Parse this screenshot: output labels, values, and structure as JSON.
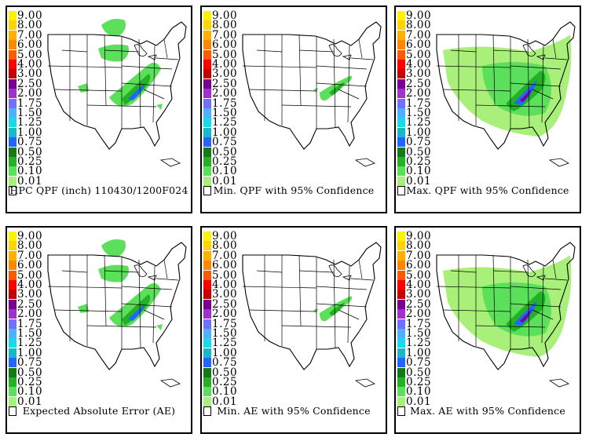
{
  "legend": {
    "labels": [
      "9.00",
      "8.00",
      "7.00",
      "6.00",
      "5.00",
      "4.00",
      "3.00",
      "2.50",
      "2.00",
      "1.75",
      "1.50",
      "1.25",
      "1.00",
      "0.75",
      "0.50",
      "0.25",
      "0.10",
      "0.01"
    ],
    "colors": [
      "#fff200",
      "#ffd400",
      "#ffb000",
      "#ff8800",
      "#ff5a00",
      "#ff0000",
      "#c80000",
      "#7a0090",
      "#a030d0",
      "#7070ff",
      "#4fb0ff",
      "#19d8e8",
      "#17b8c8",
      "#2266ff",
      "#157a15",
      "#23b223",
      "#5ce05c",
      "#a8f07a"
    ]
  },
  "panels": [
    {
      "caption": "HPC QPF (inch) 110430/1200F024",
      "intensity": "medium"
    },
    {
      "caption": "Min. QPF with 95% Confidence",
      "intensity": "low"
    },
    {
      "caption": "Max. QPF with 95% Confidence",
      "intensity": "high"
    },
    {
      "caption": "Expected Absolute Error (AE)",
      "intensity": "medium"
    },
    {
      "caption": "Min. AE with 95% Confidence",
      "intensity": "low"
    },
    {
      "caption": "Max. AE with 95% Confidence",
      "intensity": "high"
    }
  ]
}
